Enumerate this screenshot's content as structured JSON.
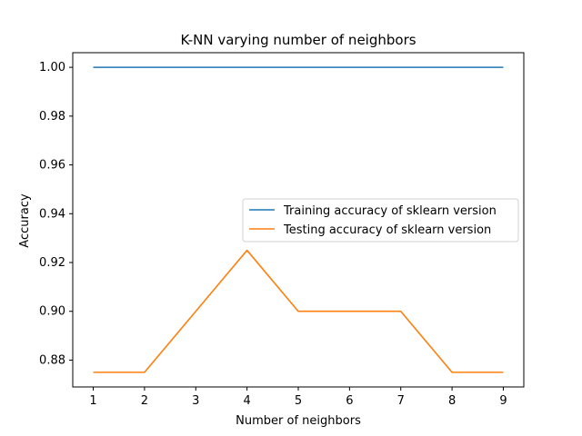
{
  "chart_data": {
    "type": "line",
    "title": "K-NN varying number of neighbors",
    "xlabel": "Number of neighbors",
    "ylabel": "Accuracy",
    "x": [
      1,
      2,
      3,
      4,
      5,
      6,
      7,
      8,
      9
    ],
    "x_tick_labels": [
      "1",
      "2",
      "3",
      "4",
      "5",
      "6",
      "7",
      "8",
      "9"
    ],
    "y_tick_values": [
      0.88,
      0.9,
      0.92,
      0.94,
      0.96,
      0.98,
      1.0
    ],
    "y_tick_labels": [
      "0.88",
      "0.90",
      "0.92",
      "0.94",
      "0.96",
      "0.98",
      "1.00"
    ],
    "xlim": [
      0.6,
      9.4
    ],
    "ylim": [
      0.869,
      1.006
    ],
    "grid": false,
    "legend_location": "center-right",
    "series": [
      {
        "name": "Training accuracy of sklearn version",
        "color": "#1f77b4",
        "values": [
          1.0,
          1.0,
          1.0,
          1.0,
          1.0,
          1.0,
          1.0,
          1.0,
          1.0
        ]
      },
      {
        "name": "Testing accuracy of sklearn version",
        "color": "#ff7f0e",
        "values": [
          0.875,
          0.875,
          0.9,
          0.925,
          0.9,
          0.9,
          0.9,
          0.875,
          0.875
        ]
      }
    ]
  }
}
